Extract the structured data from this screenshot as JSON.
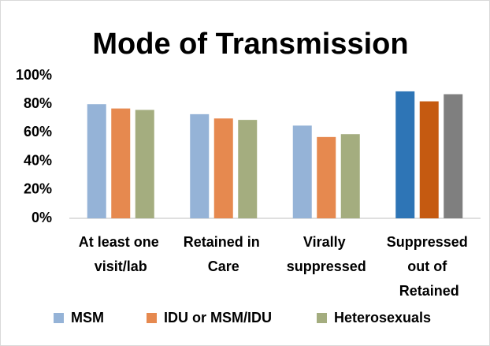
{
  "chart_data": {
    "type": "bar",
    "title": "Mode of Transmission",
    "categories": [
      "At least one visit/lab",
      "Retained in Care",
      "Virally suppressed",
      "Suppressed out of Retained"
    ],
    "series": [
      {
        "name": "MSM",
        "color": "#95b3d7",
        "colors": [
          "#95b3d7",
          "#95b3d7",
          "#95b3d7",
          "#2e75b6"
        ],
        "values": [
          80,
          73,
          65,
          89
        ]
      },
      {
        "name": "IDU or MSM/IDU",
        "color": "#e6894f",
        "colors": [
          "#e6894f",
          "#e6894f",
          "#e6894f",
          "#c55a11"
        ],
        "values": [
          77,
          70,
          57,
          82
        ]
      },
      {
        "name": "Heterosexuals",
        "color": "#a4ad7f",
        "colors": [
          "#a4ad7f",
          "#a4ad7f",
          "#a4ad7f",
          "#7f7f7f"
        ],
        "values": [
          76,
          69,
          59,
          87
        ]
      }
    ],
    "ylim": [
      0,
      100
    ],
    "yticks": [
      {
        "value": 0,
        "label": "0%"
      },
      {
        "value": 20,
        "label": "20%"
      },
      {
        "value": 40,
        "label": "40%"
      },
      {
        "value": 60,
        "label": "60%"
      },
      {
        "value": 80,
        "label": "80%"
      },
      {
        "value": 100,
        "label": "100%"
      }
    ],
    "grid": false,
    "legend": "bottom"
  }
}
